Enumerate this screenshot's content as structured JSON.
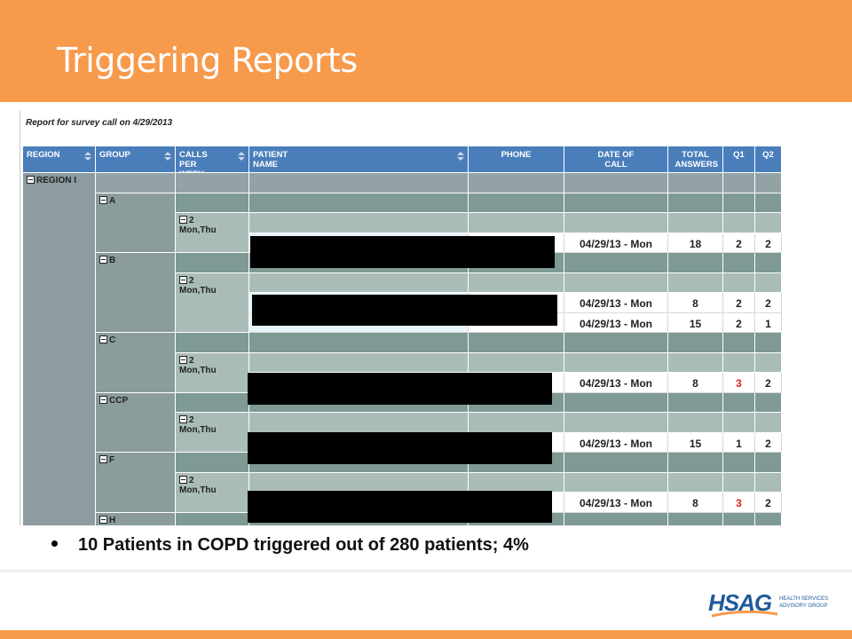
{
  "header": {
    "title": "Triggering Reports"
  },
  "report": {
    "caption": "Report for survey call on 4/29/2013",
    "columns": [
      "REGION",
      "GROUP",
      "CALLS PER WEEK",
      "PATIENT NAME",
      "PHONE",
      "DATE OF CALL",
      "TOTAL ANSWERS",
      "Q1",
      "Q2"
    ],
    "region": "REGION I",
    "groups": [
      {
        "name": "A",
        "calls": "2",
        "days": "Mon,Thu",
        "rows": [
          {
            "date": "04/29/13 - Mon",
            "total": 18,
            "q1": 2,
            "q2": 2
          }
        ]
      },
      {
        "name": "B",
        "calls": "2",
        "days": "Mon,Thu",
        "rows": [
          {
            "date": "04/29/13 - Mon",
            "total": 8,
            "q1": 2,
            "q2": 2
          },
          {
            "date": "04/29/13 - Mon",
            "total": 15,
            "q1": 2,
            "q2": 1
          }
        ]
      },
      {
        "name": "C",
        "calls": "2",
        "days": "Mon,Thu",
        "rows": [
          {
            "date": "04/29/13 - Mon",
            "total": 8,
            "q1": 3,
            "q2": 2,
            "q1_color": "#e2231a"
          }
        ]
      },
      {
        "name": "CCP",
        "calls": "2",
        "days": "Mon,Thu",
        "rows": [
          {
            "date": "04/29/13 - Mon",
            "total": 15,
            "q1": 1,
            "q2": 2
          }
        ]
      },
      {
        "name": "F",
        "calls": "2",
        "days": "Mon,Thu",
        "rows": [
          {
            "date": "04/29/13 - Mon",
            "total": 8,
            "q1": 3,
            "q2": 2,
            "q1_color": "#e2231a"
          }
        ]
      },
      {
        "name": "H"
      }
    ]
  },
  "bullets": [
    "10 Patients in COPD triggered out of 280 patients; 4%"
  ],
  "logo": {
    "name": "HSAG",
    "tagline": [
      "HEALTH SERVICES",
      "ADVISORY GROUP"
    ]
  }
}
